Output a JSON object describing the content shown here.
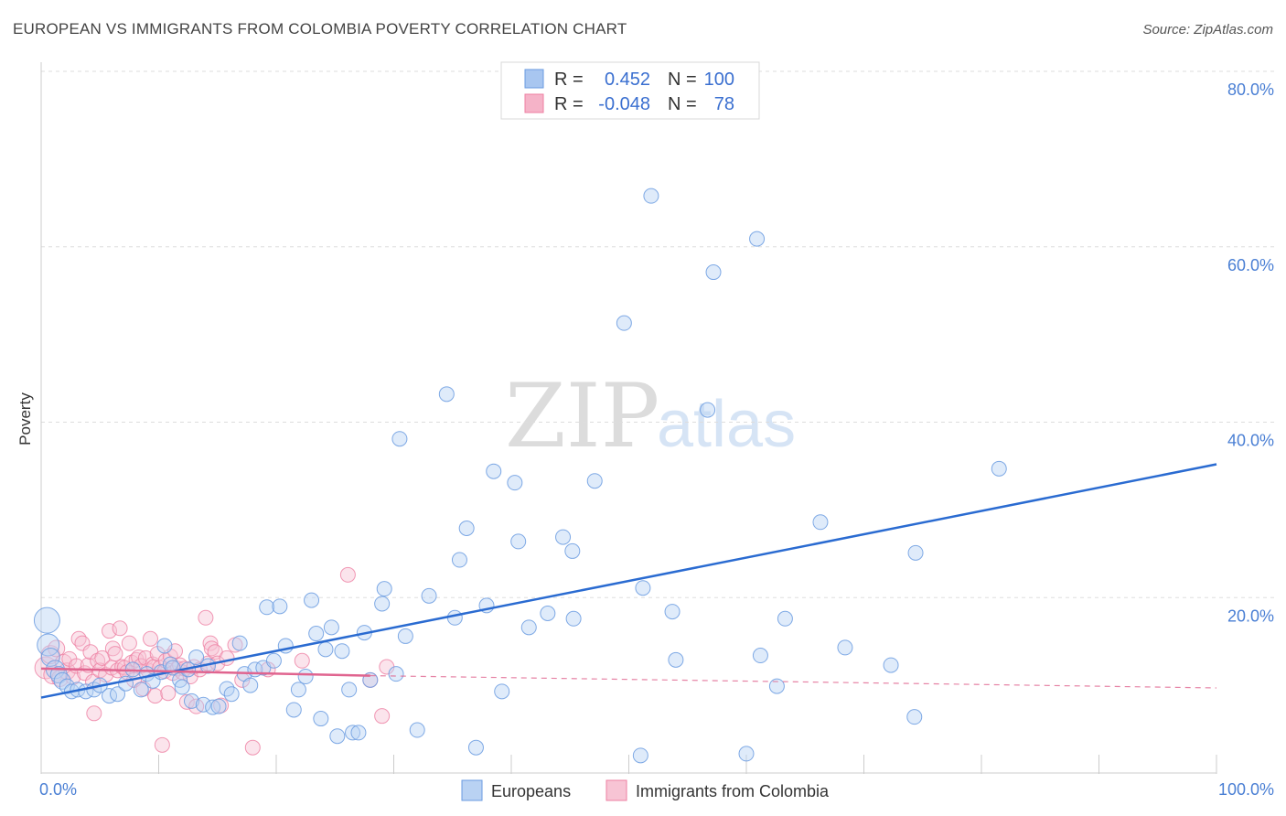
{
  "header": {
    "title": "EUROPEAN VS IMMIGRANTS FROM COLOMBIA POVERTY CORRELATION CHART",
    "source": "Source: ZipAtlas.com"
  },
  "watermark": {
    "zip": "ZIP",
    "atlas": "atlas"
  },
  "legend": {
    "r_label": "R =",
    "n_label": "N =",
    "rows": [
      {
        "r": "0.452",
        "n": "100",
        "color": "#a8c6f0"
      },
      {
        "r": "-0.048",
        "n": "78",
        "color": "#f5b3c8"
      }
    ]
  },
  "bottom_legend": [
    "Europeans",
    "Immigrants from Colombia"
  ],
  "colors": {
    "blue": "#6a9be0",
    "blue_fill": "#b9d2f3",
    "blue_line": "#2a6bd1",
    "pink": "#ee7fa2",
    "pink_fill": "#f7c4d4",
    "pink_line": "#e0648f",
    "axis_text": "#4a7fd4"
  },
  "chart_data": {
    "type": "scatter",
    "title": "EUROPEAN VS IMMIGRANTS FROM COLOMBIA POVERTY CORRELATION CHART",
    "xlabel": "",
    "ylabel": "Poverty",
    "xlim": [
      0,
      100
    ],
    "ylim": [
      0,
      80
    ],
    "x_tick_labels": [
      "0.0%",
      "100.0%"
    ],
    "y_tick_labels": [
      "20.0%",
      "40.0%",
      "60.0%",
      "80.0%"
    ],
    "y_ticks": [
      20,
      40,
      60,
      80
    ],
    "grid": "horizontal dashed",
    "series": [
      {
        "name": "Europeans",
        "trend": {
          "x": [
            0,
            100
          ],
          "y": [
            8.6,
            35.2
          ]
        },
        "points": [
          [
            0.5,
            17.4,
            14
          ],
          [
            0.6,
            14.6,
            12
          ],
          [
            0.8,
            13.2,
            10
          ],
          [
            1.2,
            11.8,
            10
          ],
          [
            1.5,
            11.2,
            9
          ],
          [
            1.8,
            10.5,
            9
          ],
          [
            2.2,
            9.9,
            8
          ],
          [
            2.6,
            9.3,
            8
          ],
          [
            3.1,
            9.5,
            8
          ],
          [
            3.8,
            9.3,
            8
          ],
          [
            4.5,
            9.5,
            8
          ],
          [
            5.0,
            10.0,
            8
          ],
          [
            5.8,
            8.8,
            8
          ],
          [
            6.5,
            9.0,
            8
          ],
          [
            7.2,
            10.2,
            8
          ],
          [
            7.8,
            11.8,
            8
          ],
          [
            8.5,
            9.5,
            8
          ],
          [
            9.0,
            11.3,
            8
          ],
          [
            9.5,
            10.5,
            8
          ],
          [
            10.2,
            11.5,
            8
          ],
          [
            10.5,
            14.5,
            8
          ],
          [
            11.0,
            12.4,
            8
          ],
          [
            11.2,
            12.0,
            8
          ],
          [
            11.8,
            10.6,
            8
          ],
          [
            12.0,
            9.8,
            8
          ],
          [
            12.5,
            11.8,
            8
          ],
          [
            12.8,
            8.2,
            8
          ],
          [
            13.2,
            13.2,
            8
          ],
          [
            13.8,
            7.8,
            8
          ],
          [
            14.2,
            12.2,
            8
          ],
          [
            14.6,
            7.5,
            8
          ],
          [
            15.1,
            7.6,
            8
          ],
          [
            15.8,
            9.6,
            8
          ],
          [
            16.2,
            9.0,
            8
          ],
          [
            16.9,
            14.8,
            8
          ],
          [
            17.3,
            11.3,
            8
          ],
          [
            17.8,
            10.0,
            8
          ],
          [
            18.2,
            11.8,
            8
          ],
          [
            18.9,
            12.0,
            8
          ],
          [
            19.2,
            18.9,
            8
          ],
          [
            19.8,
            12.8,
            8
          ],
          [
            20.3,
            19.0,
            8
          ],
          [
            20.8,
            14.5,
            8
          ],
          [
            21.5,
            7.2,
            8
          ],
          [
            21.9,
            9.5,
            8
          ],
          [
            22.5,
            11.0,
            8
          ],
          [
            23.0,
            19.7,
            8
          ],
          [
            23.4,
            15.9,
            8
          ],
          [
            23.8,
            6.2,
            8
          ],
          [
            24.2,
            14.1,
            8
          ],
          [
            24.7,
            16.6,
            8
          ],
          [
            25.2,
            4.2,
            8
          ],
          [
            25.6,
            13.9,
            8
          ],
          [
            26.2,
            9.5,
            8
          ],
          [
            26.5,
            4.6,
            8
          ],
          [
            27.0,
            4.6,
            8
          ],
          [
            27.5,
            16.0,
            8
          ],
          [
            28.0,
            10.6,
            8
          ],
          [
            29.0,
            19.3,
            8
          ],
          [
            29.2,
            21.0,
            8
          ],
          [
            30.2,
            11.3,
            8
          ],
          [
            30.5,
            38.1,
            8
          ],
          [
            31.0,
            15.6,
            8
          ],
          [
            32.0,
            4.9,
            8
          ],
          [
            33.0,
            20.2,
            8
          ],
          [
            34.5,
            43.2,
            8
          ],
          [
            35.2,
            17.7,
            8
          ],
          [
            35.6,
            24.3,
            8
          ],
          [
            36.2,
            27.9,
            8
          ],
          [
            37.0,
            2.9,
            8
          ],
          [
            37.9,
            19.1,
            8
          ],
          [
            38.5,
            34.4,
            8
          ],
          [
            39.2,
            9.3,
            8
          ],
          [
            40.3,
            33.1,
            8
          ],
          [
            40.6,
            26.4,
            8
          ],
          [
            41.5,
            16.6,
            8
          ],
          [
            43.1,
            18.2,
            8
          ],
          [
            44.4,
            26.9,
            8
          ],
          [
            45.2,
            25.3,
            8
          ],
          [
            45.3,
            17.6,
            8
          ],
          [
            47.1,
            33.3,
            8
          ],
          [
            49.6,
            51.3,
            8
          ],
          [
            51.0,
            2.0,
            8
          ],
          [
            51.2,
            21.1,
            8
          ],
          [
            51.9,
            65.8,
            8
          ],
          [
            53.7,
            18.4,
            8
          ],
          [
            54.0,
            12.9,
            8
          ],
          [
            56.7,
            41.4,
            8
          ],
          [
            57.2,
            57.1,
            8
          ],
          [
            60.0,
            2.2,
            8
          ],
          [
            60.9,
            60.9,
            8
          ],
          [
            61.2,
            13.4,
            8
          ],
          [
            62.6,
            9.9,
            8
          ],
          [
            63.3,
            17.6,
            8
          ],
          [
            66.3,
            28.6,
            8
          ],
          [
            68.4,
            14.3,
            8
          ],
          [
            72.3,
            12.3,
            8
          ],
          [
            74.3,
            6.4,
            8
          ],
          [
            74.4,
            25.1,
            8
          ],
          [
            81.5,
            34.7,
            8
          ]
        ]
      },
      {
        "name": "Immigrants from Colombia",
        "trend": {
          "x": [
            0,
            28
          ],
          "y": [
            11.9,
            11.1
          ],
          "dashed_to": [
            100,
            9.7
          ]
        },
        "points": [
          [
            0.4,
            12.0,
            12
          ],
          [
            0.8,
            13.5,
            10
          ],
          [
            1.0,
            11.2,
            10
          ],
          [
            1.3,
            14.2,
            9
          ],
          [
            1.6,
            10.8,
            9
          ],
          [
            1.9,
            12.6,
            9
          ],
          [
            2.2,
            11.6,
            9
          ],
          [
            2.4,
            13.0,
            8
          ],
          [
            2.7,
            10.9,
            8
          ],
          [
            3.0,
            12.2,
            8
          ],
          [
            3.2,
            15.3,
            8
          ],
          [
            3.5,
            14.8,
            8
          ],
          [
            3.7,
            11.4,
            8
          ],
          [
            4.0,
            12.3,
            8
          ],
          [
            4.2,
            13.8,
            8
          ],
          [
            4.4,
            10.4,
            8
          ],
          [
            4.5,
            6.8,
            8
          ],
          [
            4.8,
            12.8,
            8
          ],
          [
            5.0,
            11.7,
            8
          ],
          [
            5.2,
            13.1,
            8
          ],
          [
            5.5,
            11.2,
            8
          ],
          [
            5.8,
            16.2,
            8
          ],
          [
            6.0,
            12.0,
            8
          ],
          [
            6.1,
            14.2,
            8
          ],
          [
            6.3,
            13.6,
            8
          ],
          [
            6.5,
            11.7,
            8
          ],
          [
            6.7,
            16.5,
            8
          ],
          [
            6.9,
            12.1,
            8
          ],
          [
            7.1,
            12.0,
            8
          ],
          [
            7.3,
            11.5,
            8
          ],
          [
            7.5,
            14.8,
            8
          ],
          [
            7.7,
            12.6,
            8
          ],
          [
            7.9,
            10.6,
            8
          ],
          [
            8.1,
            12.9,
            8
          ],
          [
            8.3,
            13.2,
            8
          ],
          [
            8.5,
            12.2,
            8
          ],
          [
            8.7,
            9.6,
            8
          ],
          [
            8.9,
            13.1,
            8
          ],
          [
            9.1,
            11.7,
            8
          ],
          [
            9.3,
            15.3,
            8
          ],
          [
            9.5,
            12.4,
            8
          ],
          [
            9.6,
            12.1,
            8
          ],
          [
            9.7,
            8.8,
            8
          ],
          [
            9.9,
            13.6,
            8
          ],
          [
            10.1,
            12.0,
            8
          ],
          [
            10.3,
            3.2,
            8
          ],
          [
            10.5,
            11.6,
            8
          ],
          [
            10.6,
            12.8,
            8
          ],
          [
            10.8,
            9.1,
            8
          ],
          [
            11.0,
            13.3,
            8
          ],
          [
            11.2,
            11.4,
            8
          ],
          [
            11.4,
            13.9,
            8
          ],
          [
            11.6,
            11.9,
            8
          ],
          [
            11.8,
            12.3,
            8
          ],
          [
            12.0,
            11.5,
            8
          ],
          [
            12.2,
            11.9,
            8
          ],
          [
            12.4,
            8.1,
            8
          ],
          [
            12.7,
            11.0,
            8
          ],
          [
            13.0,
            12.1,
            8
          ],
          [
            13.2,
            7.6,
            8
          ],
          [
            13.5,
            11.8,
            8
          ],
          [
            14.0,
            17.7,
            8
          ],
          [
            14.2,
            12.5,
            8
          ],
          [
            14.4,
            14.8,
            8
          ],
          [
            14.5,
            14.2,
            8
          ],
          [
            14.8,
            13.8,
            8
          ],
          [
            15.0,
            12.5,
            8
          ],
          [
            15.3,
            7.7,
            8
          ],
          [
            15.8,
            13.1,
            8
          ],
          [
            16.5,
            14.6,
            8
          ],
          [
            17.1,
            10.6,
            8
          ],
          [
            18.0,
            2.9,
            8
          ],
          [
            19.3,
            11.8,
            8
          ],
          [
            22.2,
            12.8,
            8
          ],
          [
            26.1,
            22.6,
            8
          ],
          [
            28.0,
            10.6,
            8
          ],
          [
            29.0,
            6.5,
            8
          ],
          [
            29.4,
            12.1,
            8
          ]
        ]
      }
    ]
  }
}
